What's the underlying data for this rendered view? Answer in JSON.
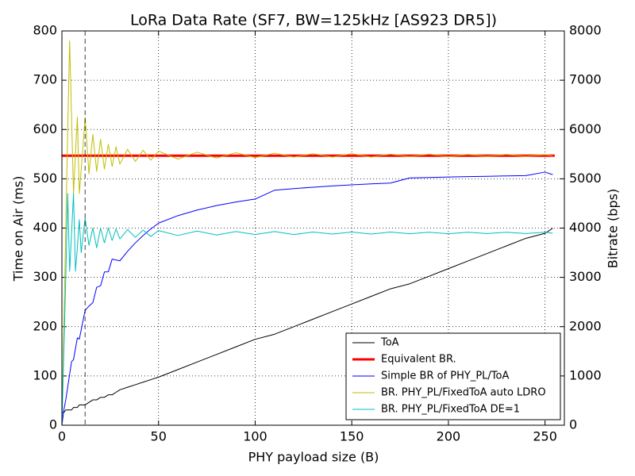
{
  "chart_data": {
    "type": "line",
    "title": "LoRa Data Rate (SF7, BW=125kHz [AS923 DR5])",
    "xlabel": "PHY payload size (B)",
    "ylabel": "Time on Air (ms)",
    "y2label": "Bitrate (bps)",
    "xlim": [
      0,
      260
    ],
    "xticks": [
      0,
      50,
      100,
      150,
      200,
      250
    ],
    "ylim": [
      0,
      800
    ],
    "yticks": [
      0,
      100,
      200,
      300,
      400,
      500,
      600,
      700,
      800
    ],
    "y2lim": [
      0,
      8000
    ],
    "y2ticks": [
      0,
      1000,
      2000,
      3000,
      4000,
      5000,
      6000,
      7000,
      8000
    ],
    "grid": true,
    "legend": "lower right",
    "vline": 12,
    "x": [
      0,
      1,
      2,
      3,
      4,
      5,
      6,
      7,
      8,
      9,
      10,
      11,
      12,
      14,
      16,
      18,
      20,
      22,
      24,
      26,
      28,
      30,
      34,
      38,
      42,
      46,
      50,
      60,
      70,
      80,
      90,
      100,
      110,
      120,
      130,
      140,
      150,
      160,
      170,
      180,
      190,
      200,
      210,
      220,
      230,
      240,
      250,
      254
    ],
    "series": [
      {
        "name": "ToA",
        "color": "#000000",
        "linewidth": 1,
        "values": [
          25.86,
          25.86,
          30.98,
          30.98,
          30.98,
          30.98,
          36.1,
          36.1,
          36.1,
          41.22,
          41.22,
          41.22,
          41.22,
          46.34,
          51.46,
          51.46,
          56.58,
          56.58,
          61.7,
          61.7,
          66.82,
          71.94,
          77.06,
          82.18,
          87.3,
          92.42,
          97.54,
          112.9,
          128.26,
          143.62,
          158.98,
          174.34,
          184.58,
          199.94,
          215.3,
          230.66,
          246.02,
          261.38,
          276.74,
          286.98,
          302.34,
          317.7,
          333.06,
          348.42,
          363.78,
          379.14,
          389.38,
          399.62
        ]
      },
      {
        "name": "Equivalent BR.",
        "color": "#ff0000",
        "linewidth": 3,
        "axis": "y2",
        "x": [
          0,
          255
        ],
        "values": [
          5469,
          5469
        ]
      },
      {
        "name": "Simple BR of PHY_PL/ToA",
        "color": "#0000ff",
        "linewidth": 1,
        "axis": "y2",
        "values": [
          0,
          309,
          516,
          775,
          1033,
          1291,
          1330,
          1551,
          1773,
          1747,
          1941,
          2135,
          2329,
          2417,
          2487,
          2798,
          2828,
          3111,
          3112,
          3371,
          3352,
          3336,
          3530,
          3699,
          3849,
          3982,
          4101,
          4252,
          4366,
          4456,
          4529,
          4589,
          4768,
          4801,
          4830,
          4856,
          4878,
          4897,
          4914,
          5018,
          5027,
          5036,
          5044,
          5051,
          5058,
          5064,
          5136,
          5085
        ]
      },
      {
        "name": "BR. PHY_PL/FixedToA auto LDRO",
        "color": "#bfbf00",
        "linewidth": 1,
        "axis": "y2",
        "values": [
          0,
          2000,
          4000,
          6000,
          7800,
          6250,
          4700,
          5500,
          6250,
          4700,
          5200,
          5700,
          6250,
          5100,
          5900,
          5150,
          5800,
          5200,
          5700,
          5250,
          5650,
          5300,
          5600,
          5350,
          5580,
          5380,
          5560,
          5400,
          5540,
          5420,
          5530,
          5430,
          5520,
          5440,
          5510,
          5440,
          5510,
          5440,
          5500,
          5450,
          5500,
          5450,
          5495,
          5455,
          5495,
          5455,
          5490,
          5460
        ]
      },
      {
        "name": "BR. PHY_PL/FixedToA DE=1",
        "color": "#00bfbf",
        "linewidth": 1,
        "axis": "y2",
        "values": [
          0,
          1500,
          3000,
          4700,
          3125,
          3900,
          4700,
          3125,
          3600,
          4170,
          3500,
          3870,
          4200,
          3650,
          4000,
          3600,
          4000,
          3700,
          4000,
          3750,
          3980,
          3780,
          3970,
          3810,
          3960,
          3830,
          3950,
          3850,
          3940,
          3860,
          3930,
          3870,
          3930,
          3870,
          3920,
          3880,
          3920,
          3880,
          3920,
          3885,
          3915,
          3885,
          3915,
          3890,
          3915,
          3890,
          3915,
          3895
        ]
      }
    ]
  }
}
